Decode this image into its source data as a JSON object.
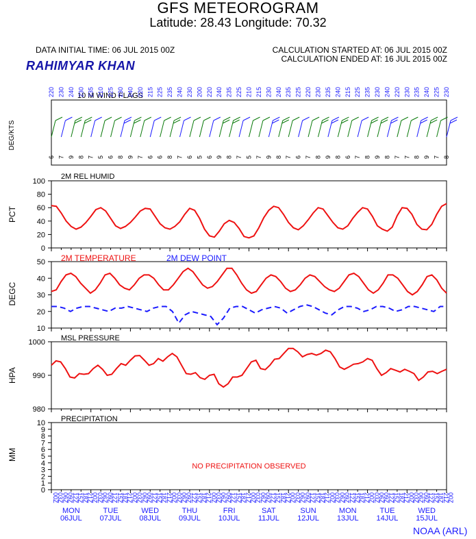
{
  "header": {
    "title": "GFS METEOROGRAM",
    "subtitle": "Latitude: 28.43 Longitude:  70.32",
    "data_initial_time": "DATA INITIAL TIME: 06 JUL 2015 00Z",
    "calc_started": "CALCULATION STARTED AT: 06 JUL 2015 00Z",
    "calc_ended": "CALCULATION ENDED AT: 16 JUL 2015 00Z",
    "station": "RAHIMYAR KHAN",
    "credit": "NOAA (ARL)"
  },
  "colors": {
    "red": "#ee1111",
    "blue": "#1a1aff",
    "green": "#0a7a0a",
    "station_blue": "#1515a8"
  },
  "chart_data": [
    {
      "type": "wind-barbs",
      "title": "10 M  WIND FLAGS",
      "ylabel": "DEG/KTS",
      "x_hours": [
        0,
        6,
        12,
        18,
        24,
        30,
        36,
        42,
        48,
        54,
        60,
        66,
        72,
        78,
        84,
        90,
        96,
        102,
        108,
        114,
        120,
        126,
        132,
        138,
        144,
        150,
        156,
        162,
        168,
        174,
        180,
        186,
        192,
        198,
        204,
        210,
        216,
        222,
        228,
        234,
        240
      ],
      "direction_deg": [
        220,
        230,
        240,
        230,
        235,
        210,
        225,
        230,
        240,
        220,
        215,
        225,
        235,
        240,
        230,
        200,
        220,
        240,
        235,
        225,
        210,
        215,
        230,
        240,
        235,
        225,
        220,
        230,
        235,
        240,
        215,
        225,
        235,
        230,
        240,
        220,
        230,
        235,
        240,
        225,
        230
      ],
      "speed_kts": [
        6,
        7,
        9,
        8,
        7,
        5,
        6,
        8,
        9,
        7,
        6,
        6,
        8,
        7,
        6,
        5,
        6,
        9,
        8,
        7,
        5,
        7,
        9,
        8,
        7,
        6,
        7,
        8,
        9,
        8,
        6,
        7,
        8,
        9,
        8,
        7,
        7,
        8,
        9,
        7,
        8
      ]
    },
    {
      "type": "line",
      "title": "2M REL HUMID",
      "ylabel": "PCT",
      "ylim": [
        0,
        100
      ],
      "yticks": [
        0,
        20,
        40,
        60,
        80,
        100
      ],
      "series": [
        {
          "name": "2M REL HUMID",
          "color": "#ee1111",
          "dash": false,
          "x": [
            0,
            3,
            6,
            9,
            12,
            15,
            18,
            21,
            24,
            27,
            30,
            33,
            36,
            39,
            42,
            45,
            48,
            51,
            54,
            57,
            60,
            63,
            66,
            69,
            72,
            75,
            78,
            81,
            84,
            87,
            90,
            93,
            96,
            99,
            102,
            105,
            108,
            111,
            114,
            117,
            120,
            123,
            126,
            129,
            132,
            135,
            138,
            141,
            144,
            147,
            150,
            153,
            156,
            159,
            162,
            165,
            168,
            171,
            174,
            177,
            180,
            183,
            186,
            189,
            192,
            195,
            198,
            201,
            204,
            207,
            210,
            213,
            216,
            219,
            222,
            225,
            228,
            231,
            234,
            237,
            240
          ],
          "y": [
            63,
            62,
            52,
            40,
            32,
            28,
            31,
            38,
            47,
            57,
            60,
            55,
            44,
            33,
            29,
            32,
            38,
            46,
            55,
            59,
            58,
            47,
            36,
            30,
            28,
            32,
            39,
            50,
            59,
            56,
            44,
            28,
            18,
            16,
            25,
            36,
            41,
            38,
            29,
            17,
            15,
            18,
            30,
            45,
            56,
            62,
            60,
            50,
            38,
            30,
            27,
            33,
            42,
            52,
            60,
            58,
            48,
            38,
            30,
            28,
            33,
            44,
            53,
            60,
            58,
            47,
            33,
            28,
            25,
            31,
            48,
            60,
            59,
            50,
            35,
            28,
            27,
            35,
            50,
            62,
            66
          ],
          "tail": [
            63,
            52,
            38,
            30,
            29,
            36,
            48,
            58,
            66
          ]
        }
      ]
    },
    {
      "type": "line",
      "title": "2M TEMPERATURE",
      "title2": "2M   DEW POINT",
      "ylabel": "DEGC",
      "ylim": [
        10,
        50
      ],
      "yticks": [
        10,
        20,
        30,
        40,
        50
      ],
      "series": [
        {
          "name": "2M TEMPERATURE",
          "color": "#ee1111",
          "dash": false,
          "y": [
            32,
            33,
            38,
            42,
            43,
            41,
            37,
            34,
            31,
            33,
            37,
            42,
            43,
            40,
            36,
            34,
            33,
            36,
            40,
            42,
            42,
            40,
            36,
            33,
            33,
            36,
            40,
            44,
            46,
            44,
            40,
            36,
            34,
            35,
            38,
            42,
            46,
            46,
            42,
            37,
            33,
            31,
            32,
            36,
            40,
            42,
            41,
            38,
            34,
            32,
            33,
            36,
            40,
            42,
            41,
            38,
            35,
            33,
            32,
            34,
            38,
            42,
            43,
            41,
            37,
            33,
            31,
            33,
            37,
            42,
            42,
            40,
            36,
            32,
            30,
            32,
            36,
            41,
            42,
            39,
            34,
            31
          ],
          "tail": [
            30
          ]
        },
        {
          "name": "2M   DEW POINT",
          "color": "#1a1aff",
          "dash": true,
          "y": [
            23,
            23,
            22,
            20,
            22,
            23,
            23,
            22,
            21,
            20,
            22,
            22,
            23,
            22,
            21,
            20,
            22,
            23,
            23,
            20,
            13,
            18,
            20,
            19,
            18,
            17,
            12,
            16,
            22,
            23,
            23,
            21,
            19,
            21,
            22,
            23,
            22,
            19,
            21,
            23,
            24,
            23,
            21,
            19,
            18,
            21,
            23,
            23,
            22,
            20,
            21,
            23,
            23,
            22,
            20,
            21,
            23,
            23,
            22,
            21,
            20,
            23,
            23
          ]
        }
      ]
    },
    {
      "type": "line",
      "title": "MSL PRESSURE",
      "ylabel": "HPA",
      "ylim": [
        980,
        1000
      ],
      "yticks": [
        980,
        990,
        1000
      ],
      "series": [
        {
          "name": "MSL PRESSURE",
          "color": "#ee1111",
          "dash": false,
          "y": [
            993,
            994.3,
            994,
            992,
            989.5,
            989.2,
            990.5,
            990.3,
            990.5,
            992,
            993,
            991.8,
            990,
            990.3,
            992,
            993.5,
            993,
            994.5,
            995.8,
            995.9,
            994.5,
            993,
            993.5,
            995,
            994.2,
            995.5,
            996.5,
            995.5,
            993,
            990.5,
            990.3,
            990.8,
            989.3,
            988.8,
            990,
            990.3,
            987.5,
            986.5,
            987.5,
            989.5,
            989.5,
            990,
            992,
            994,
            994.5,
            992,
            991.7,
            993,
            994.8,
            995,
            996.5,
            998,
            998,
            997,
            995.5,
            996.2,
            996.5,
            996,
            996.5,
            997.5,
            997,
            995,
            992.5,
            991.8,
            992.5,
            993.3,
            993.5,
            994,
            995,
            994.5,
            992,
            990,
            990.8,
            992,
            991.5,
            991,
            991.8,
            991.2,
            990.5,
            988.5,
            989.5,
            991,
            991.2,
            990.5,
            991.2,
            991.8
          ]
        }
      ]
    },
    {
      "type": "line",
      "title": "PRECIPITATION",
      "ylabel": "MM",
      "ylim": [
        0,
        10
      ],
      "yticks": [
        0,
        1,
        2,
        3,
        4,
        5,
        6,
        7,
        8,
        9,
        10
      ],
      "annotation": "NO PRECIPITATION OBSERVED",
      "series": []
    }
  ],
  "time_axis": {
    "hour_labels": [
      "00Z",
      "03Z",
      "06Z",
      "09Z",
      "12Z",
      "15Z",
      "18Z",
      "21Z"
    ],
    "days": [
      {
        "dow": "MON",
        "date": "06JUL"
      },
      {
        "dow": "TUE",
        "date": "07JUL"
      },
      {
        "dow": "WED",
        "date": "08JUL"
      },
      {
        "dow": "THU",
        "date": "09JUL"
      },
      {
        "dow": "FRI",
        "date": "10JUL"
      },
      {
        "dow": "SAT",
        "date": "11JUL"
      },
      {
        "dow": "SUN",
        "date": "12JUL"
      },
      {
        "dow": "MON",
        "date": "13JUL"
      },
      {
        "dow": "TUE",
        "date": "14JUL"
      },
      {
        "dow": "WED",
        "date": "15JUL"
      }
    ]
  }
}
